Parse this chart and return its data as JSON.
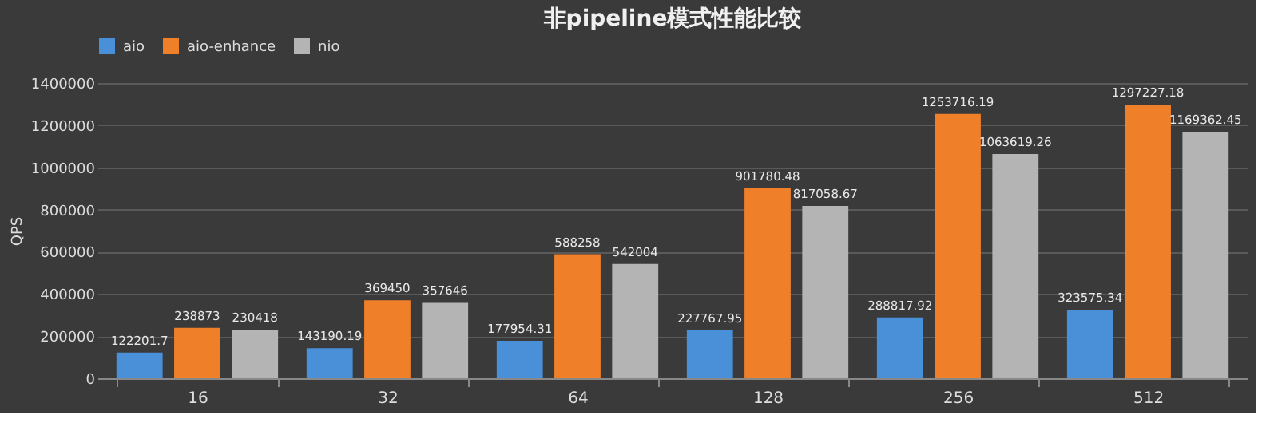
{
  "chart_data": {
    "type": "bar",
    "title": "非pipeline模式性能比较",
    "ylabel": "QPS",
    "categories": [
      "16",
      "32",
      "64",
      "128",
      "256",
      "512"
    ],
    "series": [
      {
        "name": "aio",
        "color": "#4a90d9",
        "values": [
          122201.7,
          143190.19,
          177954.31,
          227767.95,
          288817.92,
          323575.34
        ]
      },
      {
        "name": "aio-enhance",
        "color": "#f07f2a",
        "values": [
          238873,
          369450,
          588258,
          901780.48,
          1253716.19,
          1297227.18
        ]
      },
      {
        "name": "nio",
        "color": "#b4b4b4",
        "values": [
          230418,
          357646,
          542004,
          817058.67,
          1063619.26,
          1169362.45
        ]
      }
    ],
    "ylim": [
      0,
      1400000
    ],
    "yticks": [
      0,
      200000,
      400000,
      600000,
      800000,
      1000000,
      1200000,
      1400000
    ],
    "grid": "y",
    "legend": "top",
    "data_labels": true
  }
}
